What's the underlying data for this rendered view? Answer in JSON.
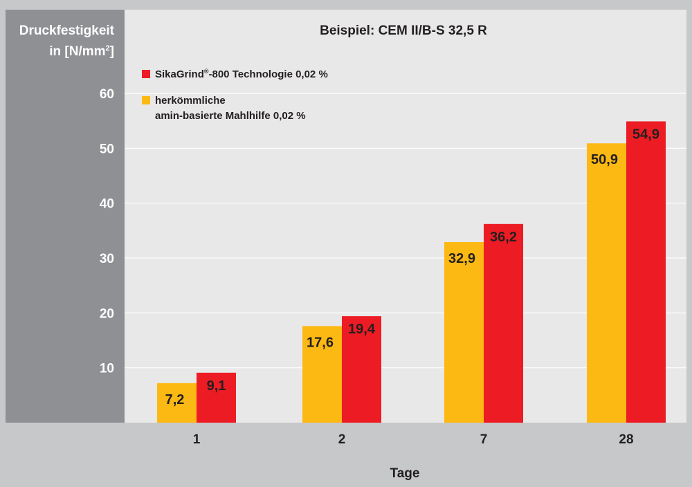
{
  "colors": {
    "background": "#c7c8ca",
    "plot_bg": "#e8e8e9",
    "y_panel": "#8f9094",
    "grid": "#ffffff",
    "series_yellow": "#fdb913",
    "series_red": "#ed1c24",
    "text": "#231f20",
    "axis_text_light": "#ffffff"
  },
  "chart_data": {
    "type": "bar",
    "title": "Beispiel: CEM II/B-S 32,5 R",
    "ylabel_line1": "Druckfestigkeit",
    "ylabel_line2_prefix": "in [N/mm",
    "ylabel_line2_sup": "2",
    "ylabel_line2_suffix": "]",
    "xlabel": "Tage",
    "categories": [
      "1",
      "2",
      "7",
      "28"
    ],
    "yticks": [
      "10",
      "20",
      "30",
      "40",
      "50",
      "60"
    ],
    "ylim": [
      0,
      60
    ],
    "grid": true,
    "legend_position": "top-left",
    "series": [
      {
        "legend_lines": [
          "herkömmliche",
          "amin-basierte Mahlhilfe 0,02 %"
        ],
        "color": "#fdb913",
        "values": [
          7.2,
          17.6,
          32.9,
          50.9
        ],
        "labels": [
          "7,2",
          "17,6",
          "32,9",
          "50,9"
        ]
      },
      {
        "legend_main": "SikaGrind",
        "legend_sup": "®",
        "legend_rest": "-800 Technologie 0,02 %",
        "color": "#ed1c24",
        "values": [
          9.1,
          19.4,
          36.2,
          54.9
        ],
        "labels": [
          "9,1",
          "19,4",
          "36,2",
          "54,9"
        ]
      }
    ]
  }
}
